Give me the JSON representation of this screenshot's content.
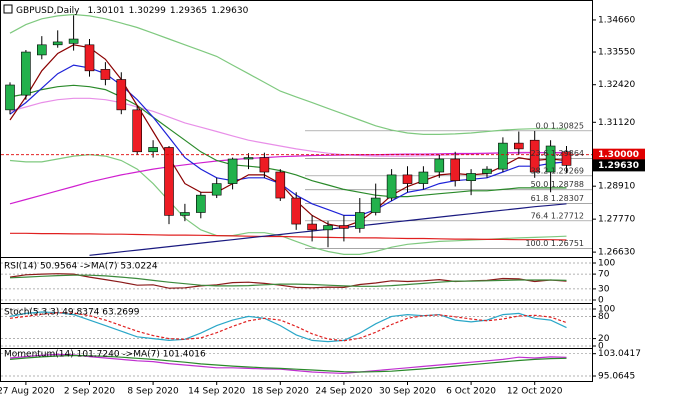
{
  "chart_data": [
    {
      "type": "candlestick",
      "title": "GBPUSD,Daily",
      "ohlc_labels": [
        "1.30101",
        "1.30299",
        "1.29365",
        "1.29630"
      ],
      "categories": [
        null,
        "27 Aug 2020",
        null,
        null,
        null,
        "2 Sep 2020",
        null,
        null,
        null,
        "8 Sep 2020",
        null,
        null,
        null,
        "14 Sep 2020",
        null,
        null,
        null,
        "18 Sep 2020",
        null,
        null,
        null,
        "24 Sep 2020",
        null,
        null,
        null,
        "30 Sep 2020",
        null,
        null,
        null,
        "6 Oct 2020",
        null,
        null,
        null,
        "12 Oct 2020",
        null,
        null
      ],
      "open": [
        1.3155,
        1.3206,
        1.3345,
        1.338,
        1.3385,
        1.338,
        1.3295,
        1.326,
        1.3155,
        1.301,
        1.3025,
        1.279,
        1.28,
        1.286,
        1.29,
        1.2985,
        1.299,
        1.294,
        1.285,
        1.276,
        1.274,
        1.2755,
        1.2745,
        1.28,
        1.285,
        1.293,
        1.29,
        1.294,
        1.2985,
        1.291,
        1.2935,
        1.295,
        1.304,
        1.305,
        1.294,
        1.30101
      ],
      "high": [
        1.325,
        1.3362,
        1.341,
        1.343,
        1.3482,
        1.34,
        1.332,
        1.3285,
        1.317,
        1.305,
        1.303,
        1.283,
        1.287,
        1.292,
        1.299,
        1.3005,
        1.3007,
        1.295,
        1.287,
        1.279,
        1.277,
        1.279,
        1.285,
        1.29,
        1.295,
        1.296,
        1.296,
        1.3,
        1.301,
        1.295,
        1.296,
        1.306,
        1.308,
        1.3082,
        1.305,
        1.30299
      ],
      "low": [
        1.314,
        1.319,
        1.333,
        1.337,
        1.336,
        1.327,
        1.324,
        1.314,
        1.3,
        1.299,
        1.276,
        1.277,
        1.278,
        1.285,
        1.288,
        1.295,
        1.292,
        1.284,
        1.274,
        1.27,
        1.268,
        1.27,
        1.273,
        1.279,
        1.284,
        1.287,
        1.288,
        1.292,
        1.289,
        1.286,
        1.292,
        1.294,
        1.3,
        1.292,
        1.287,
        1.29365
      ],
      "close": [
        1.3241,
        1.3355,
        1.338,
        1.339,
        1.34,
        1.329,
        1.326,
        1.3155,
        1.301,
        1.3025,
        1.279,
        1.28,
        1.286,
        1.29,
        1.2985,
        1.299,
        1.294,
        1.285,
        1.276,
        1.274,
        1.2755,
        1.2745,
        1.28,
        1.285,
        1.293,
        1.29,
        1.294,
        1.2985,
        1.291,
        1.2935,
        1.295,
        1.304,
        1.302,
        1.294,
        1.303,
        1.2963
      ],
      "up_color": "#22b14c",
      "down_color": "#ed1c24",
      "series": [
        {
          "color": "#7fc97f",
          "values": [
            1.342,
            1.345,
            1.347,
            1.348,
            1.3485,
            1.348,
            1.347,
            1.3455,
            1.344,
            1.342,
            1.34,
            1.338,
            1.336,
            1.334,
            1.331,
            1.328,
            1.325,
            1.322,
            1.32,
            1.318,
            1.316,
            1.314,
            1.312,
            1.31,
            1.3085,
            1.3075,
            1.307,
            1.307,
            1.3072,
            1.3075,
            1.308,
            1.3085,
            1.3088,
            1.309,
            1.309,
            1.3088
          ]
        },
        {
          "color": "#7fc97f",
          "values": [
            1.298,
            1.2975,
            1.2975,
            1.2985,
            1.2995,
            1.3,
            1.2995,
            1.298,
            1.295,
            1.29,
            1.284,
            1.278,
            1.274,
            1.272,
            1.272,
            1.273,
            1.273,
            1.272,
            1.27,
            1.268,
            1.2665,
            1.2655,
            1.2655,
            1.2665,
            1.268,
            1.269,
            1.2695,
            1.27,
            1.2702,
            1.2705,
            1.2707,
            1.271,
            1.2712,
            1.2714,
            1.2716,
            1.2718
          ]
        },
        {
          "color": "#e88fe8",
          "values": [
            1.315,
            1.3165,
            1.318,
            1.319,
            1.3195,
            1.3195,
            1.319,
            1.318,
            1.3165,
            1.315,
            1.313,
            1.311,
            1.3095,
            1.308,
            1.3065,
            1.305,
            1.304,
            1.303,
            1.302,
            1.3012,
            1.3005,
            1.3,
            1.2997,
            1.2995,
            1.2995,
            1.2995,
            1.2996,
            1.2998,
            1.3,
            1.3002,
            1.3004,
            1.3006,
            1.3008,
            1.3008,
            1.3006,
            1.3004
          ]
        },
        {
          "color": "#d020d0",
          "values": [
            1.283,
            1.2845,
            1.286,
            1.2875,
            1.289,
            1.2905,
            1.2918,
            1.293,
            1.294,
            1.295,
            1.2958,
            1.2965,
            1.2972,
            1.2978,
            1.2983,
            1.2987,
            1.299,
            1.2993,
            1.2995,
            1.2997,
            1.2998,
            1.2999,
            1.3,
            1.3,
            1.3001,
            1.3002,
            1.3002,
            1.3003,
            1.3004,
            1.3004,
            1.3005,
            1.3006,
            1.3006,
            1.3007,
            1.3007,
            1.3008
          ]
        },
        {
          "color": "#e02020",
          "values": [
            1.2728,
            1.2728,
            1.2727,
            1.2727,
            1.2726,
            1.2726,
            1.2725,
            1.2725,
            1.2724,
            1.2723,
            1.2722,
            1.2722,
            1.2721,
            1.272,
            1.2719,
            1.2718,
            1.2717,
            1.2717,
            1.2716,
            1.2715,
            1.2714,
            1.2713,
            1.2712,
            1.2712,
            1.2711,
            1.271,
            1.271,
            1.2709,
            1.2708,
            1.2708,
            1.2707,
            1.2707,
            1.2706,
            1.2706,
            1.2706,
            1.2705
          ]
        },
        {
          "color": "#1a1a80",
          "values": [
            null,
            null,
            null,
            null,
            null,
            1.2652,
            1.2658,
            1.2664,
            1.267,
            1.2676,
            1.2682,
            1.2688,
            1.2694,
            1.27,
            1.2706,
            1.2712,
            1.2718,
            1.2724,
            1.273,
            1.2736,
            1.2742,
            1.2748,
            1.2754,
            1.276,
            1.2766,
            1.2772,
            1.2778,
            1.2784,
            1.279,
            1.2796,
            1.2802,
            1.2808,
            1.2814,
            1.282,
            1.2825,
            1.283
          ]
        },
        {
          "color": "#2a8a2a",
          "values": [
            1.32,
            1.321,
            1.3225,
            1.3235,
            1.324,
            1.3235,
            1.3225,
            1.32,
            1.317,
            1.313,
            1.309,
            1.305,
            1.301,
            1.298,
            1.2965,
            1.296,
            1.2955,
            1.2945,
            1.293,
            1.291,
            1.2895,
            1.288,
            1.287,
            1.286,
            1.2855,
            1.2855,
            1.286,
            1.2865,
            1.287,
            1.2875,
            1.2875,
            1.288,
            1.2885,
            1.2885,
            1.2885,
            1.2885
          ]
        },
        {
          "color": "#1e22d8",
          "values": [
            1.314,
            1.318,
            1.323,
            1.328,
            1.331,
            1.33,
            1.328,
            1.324,
            1.319,
            1.313,
            1.306,
            1.299,
            1.295,
            1.292,
            1.291,
            1.292,
            1.292,
            1.29,
            1.286,
            1.283,
            1.281,
            1.279,
            1.279,
            1.281,
            1.284,
            1.287,
            1.288,
            1.29,
            1.291,
            1.2915,
            1.292,
            1.294,
            1.296,
            1.296,
            1.297,
            1.2975
          ]
        },
        {
          "color": "#8b0000",
          "values": [
            1.312,
            1.32,
            1.329,
            1.335,
            1.338,
            1.337,
            1.333,
            1.326,
            1.317,
            1.308,
            1.299,
            1.29,
            1.287,
            1.287,
            1.29,
            1.293,
            1.293,
            1.29,
            1.284,
            1.279,
            1.276,
            1.275,
            1.277,
            1.281,
            1.286,
            1.289,
            1.291,
            1.293,
            1.2935,
            1.293,
            1.2935,
            1.296,
            1.299,
            1.298,
            1.2985,
            1.298
          ]
        }
      ],
      "levels": [
        {
          "value": 1.30825,
          "label": "0.0 1.30825"
        },
        {
          "value": 1.29864,
          "label": "23.6 1.29864"
        },
        {
          "value": 1.29269,
          "label": "38.2 1.29269"
        },
        {
          "value": 1.28788,
          "label": "50.0 1.28788"
        },
        {
          "value": 1.28307,
          "label": "61.8 1.28307"
        },
        {
          "value": 1.27712,
          "label": "76.4 1.27712"
        },
        {
          "value": 1.26751,
          "label": "100.0 1.26751"
        }
      ],
      "price_markers": [
        {
          "value": 1.3,
          "label": "1.30000",
          "color": "#e00000",
          "dashed": true
        },
        {
          "value": 1.2963,
          "label": "1.29630",
          "color": "#000000",
          "dashed": false
        }
      ],
      "ylim": [
        1.2653,
        1.3535
      ],
      "yticks": [
        {
          "value": 1.3466,
          "label": "1.34660"
        },
        {
          "value": 1.3355,
          "label": "1.33550"
        },
        {
          "value": 1.3242,
          "label": "1.32420"
        },
        {
          "value": 1.3112,
          "label": "1.31120"
        },
        {
          "value": 1.2891,
          "label": "1.28910"
        },
        {
          "value": 1.2777,
          "label": "1.27770"
        },
        {
          "value": 1.2663,
          "label": "1.26630"
        }
      ]
    },
    {
      "type": "line",
      "title": "RSI(14) 50.9564 ->MA(7) 53.0224",
      "ylim": [
        0,
        100
      ],
      "yticks": [
        100,
        70,
        30,
        0
      ],
      "series": [
        {
          "color": "#8b1a1a",
          "values": [
            62,
            68,
            70,
            71,
            70,
            62,
            55,
            48,
            40,
            41,
            32,
            33,
            38,
            41,
            47,
            48,
            45,
            40,
            34,
            33,
            35,
            34,
            42,
            46,
            52,
            50,
            52,
            55,
            50,
            52,
            53,
            58,
            57,
            50,
            54,
            50.9564
          ]
        },
        {
          "color": "#3c8a3c",
          "values": [
            60,
            62,
            64,
            66,
            67,
            67,
            65,
            62,
            58,
            53,
            48,
            44,
            40,
            38,
            38,
            39,
            41,
            43,
            43,
            42,
            40,
            38,
            37,
            37,
            39,
            42,
            45,
            48,
            51,
            51,
            52,
            53,
            54,
            54,
            54,
            53.0224
          ]
        }
      ]
    },
    {
      "type": "line",
      "title": "Stoch(5,3,3) 49.8374 63.2699",
      "ylim": [
        0,
        100
      ],
      "yticks": [
        100,
        80,
        20,
        0
      ],
      "series": [
        {
          "color": "#2aa7c8",
          "values": [
            80,
            88,
            92,
            90,
            85,
            70,
            55,
            40,
            25,
            20,
            15,
            18,
            35,
            55,
            70,
            80,
            75,
            55,
            30,
            15,
            12,
            15,
            35,
            60,
            80,
            85,
            82,
            85,
            70,
            65,
            70,
            85,
            88,
            75,
            70,
            49.8374
          ]
        },
        {
          "color": "#e02020",
          "dashed": true,
          "values": [
            75,
            80,
            86,
            90,
            89,
            82,
            70,
            55,
            40,
            28,
            20,
            18,
            22,
            36,
            53,
            68,
            75,
            70,
            53,
            33,
            19,
            14,
            21,
            37,
            58,
            75,
            82,
            84,
            79,
            73,
            68,
            73,
            81,
            83,
            78,
            63.2699
          ]
        }
      ]
    },
    {
      "type": "line",
      "title": "Momentum(14) 101.7240 ->MA(7) 101.4016",
      "ylim": [
        94,
        104
      ],
      "yticks": [
        103.0417,
        95.0645
      ],
      "series": [
        {
          "color": "#c030d0",
          "values": [
            101.5,
            102,
            102.5,
            102.8,
            102.6,
            102,
            101.5,
            101,
            100.5,
            100.2,
            99.5,
            99,
            98.5,
            98,
            98,
            97.8,
            97.6,
            97.5,
            97,
            96.5,
            96.2,
            96,
            96.5,
            97,
            97.5,
            98,
            98.5,
            99,
            99.5,
            100,
            100.5,
            101,
            101.8,
            101.5,
            101.9,
            101.724
          ]
        },
        {
          "color": "#2a8a2a",
          "values": [
            101,
            101.5,
            101.9,
            102.2,
            102.4,
            102.3,
            102.1,
            101.8,
            101.4,
            101,
            100.5,
            100,
            99.4,
            99,
            98.6,
            98.3,
            98,
            97.8,
            97.5,
            97.2,
            96.9,
            96.6,
            96.5,
            96.6,
            96.8,
            97.2,
            97.6,
            98.1,
            98.6,
            99.1,
            99.6,
            100.1,
            100.6,
            101,
            101.3,
            101.4016
          ]
        }
      ]
    }
  ]
}
